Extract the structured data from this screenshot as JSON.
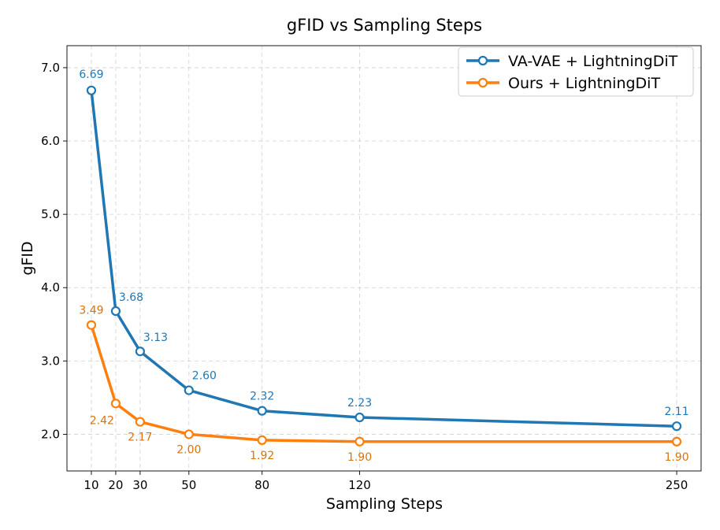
{
  "chart_data": {
    "type": "line",
    "title": "gFID vs Sampling Steps",
    "xlabel": "Sampling Steps",
    "ylabel": "gFID",
    "x": [
      10,
      20,
      30,
      50,
      80,
      120,
      250
    ],
    "x_tick_labels": [
      "10",
      "20",
      "30",
      "50",
      "80",
      "120",
      "250"
    ],
    "y_ticks": [
      2.0,
      3.0,
      4.0,
      5.0,
      6.0,
      7.0
    ],
    "y_tick_labels": [
      "2.0",
      "3.0",
      "4.0",
      "5.0",
      "6.0",
      "7.0"
    ],
    "xlim": [
      0,
      260
    ],
    "ylim": [
      1.5,
      7.3
    ],
    "grid": true,
    "legend_position": "top-right",
    "series": [
      {
        "name": "VA-VAE + LightningDiT",
        "color": "#1f77b4",
        "values": [
          6.69,
          3.68,
          3.13,
          2.6,
          2.32,
          2.23,
          2.11
        ],
        "labels": [
          "6.69",
          "3.68",
          "3.13",
          "2.60",
          "2.32",
          "2.23",
          "2.11"
        ]
      },
      {
        "name": "Ours + LightningDiT",
        "color": "#ff7f0e",
        "label_color": "#d9730d",
        "values": [
          3.49,
          2.42,
          2.17,
          2.0,
          1.92,
          1.9,
          1.9
        ],
        "labels": [
          "3.49",
          "2.42",
          "2.17",
          "2.00",
          "1.92",
          "1.90",
          "1.90"
        ]
      }
    ]
  }
}
